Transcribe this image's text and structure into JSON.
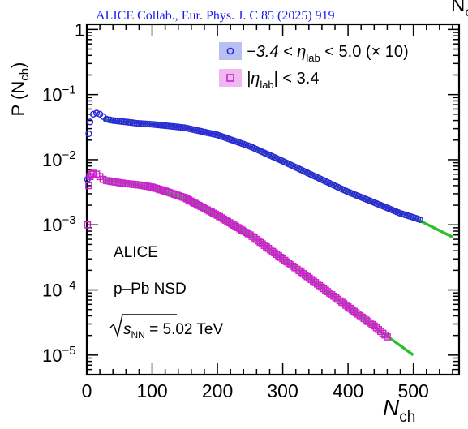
{
  "citation": "ALICE Collab., Eur. Phys. J. C 85 (2025) 919",
  "corner_fragment": "N",
  "corner_fragment_sub": "c",
  "chart_data": {
    "type": "scatter",
    "y_scale": "log",
    "xlim": [
      0,
      570
    ],
    "ylim": [
      5e-06,
      1.2
    ],
    "x_ticks": [
      0,
      100,
      200,
      300,
      400,
      500
    ],
    "y_ticks": [
      {
        "value": 1,
        "base": "1",
        "exp": ""
      },
      {
        "value": 0.1,
        "base": "10",
        "exp": "−1"
      },
      {
        "value": 0.01,
        "base": "10",
        "exp": "−2"
      },
      {
        "value": 0.001,
        "base": "10",
        "exp": "−3"
      },
      {
        "value": 0.0001,
        "base": "10",
        "exp": "−4"
      },
      {
        "value": 1e-05,
        "base": "10",
        "exp": "−5"
      }
    ],
    "xlabel": {
      "main": "N",
      "sub": "ch"
    },
    "ylabel": {
      "main": "P (N",
      "sub": "ch",
      "close": ")"
    },
    "legend_position": "top-right",
    "legend": [
      {
        "marker": "circle",
        "color": "#2b2bd6",
        "pre": "−3.4 < η",
        "sub": "lab",
        "post": " < 5.0 (× 10)"
      },
      {
        "marker": "square",
        "color": "#cc22cc",
        "pre": "|η",
        "sub": "lab",
        "post": "| < 3.4"
      }
    ],
    "annotations": {
      "experiment": "ALICE",
      "system": "p–Pb NSD",
      "energy_pre": "s",
      "energy_sub": "NN",
      "energy_post": " = 5.02 TeV"
    },
    "series": [
      {
        "marker": "circle",
        "color": "#2b2bd6",
        "fit_color": "#2bbf2b",
        "x": [
          1,
          3,
          5,
          10,
          15,
          20,
          25,
          30,
          40,
          60,
          80,
          100,
          150,
          200,
          250,
          300,
          350,
          400,
          450,
          480,
          500,
          510
        ],
        "y": [
          0.005,
          0.025,
          0.038,
          0.05,
          0.052,
          0.05,
          0.046,
          0.042,
          0.04,
          0.038,
          0.036,
          0.035,
          0.031,
          0.024,
          0.016,
          0.0095,
          0.0055,
          0.0032,
          0.002,
          0.0015,
          0.0013,
          0.0012
        ],
        "fit_x": [
          25,
          50,
          100,
          150,
          200,
          250,
          300,
          350,
          400,
          450,
          500,
          560
        ],
        "fit_y": [
          0.041,
          0.039,
          0.035,
          0.031,
          0.024,
          0.016,
          0.0095,
          0.0055,
          0.0032,
          0.002,
          0.0013,
          0.00065
        ]
      },
      {
        "marker": "square",
        "color": "#cc22cc",
        "fit_color": "#2bbf2b",
        "x": [
          1,
          3,
          5,
          8,
          10,
          15,
          20,
          25,
          30,
          40,
          60,
          80,
          100,
          120,
          150,
          200,
          250,
          300,
          350,
          400,
          440,
          460
        ],
        "y": [
          0.001,
          0.004,
          0.0055,
          0.006,
          0.0062,
          0.006,
          0.0055,
          0.005,
          0.0048,
          0.0046,
          0.0043,
          0.0041,
          0.0038,
          0.0033,
          0.0026,
          0.0014,
          0.0007,
          0.0003,
          0.00013,
          5.5e-05,
          2.8e-05,
          1.9e-05
        ],
        "fit_x": [
          25,
          50,
          100,
          150,
          200,
          250,
          300,
          350,
          400,
          450,
          500
        ],
        "fit_y": [
          0.0049,
          0.0045,
          0.0038,
          0.0026,
          0.0014,
          0.0007,
          0.0003,
          0.00013,
          5.5e-05,
          2.3e-05,
          1e-05
        ]
      }
    ]
  }
}
